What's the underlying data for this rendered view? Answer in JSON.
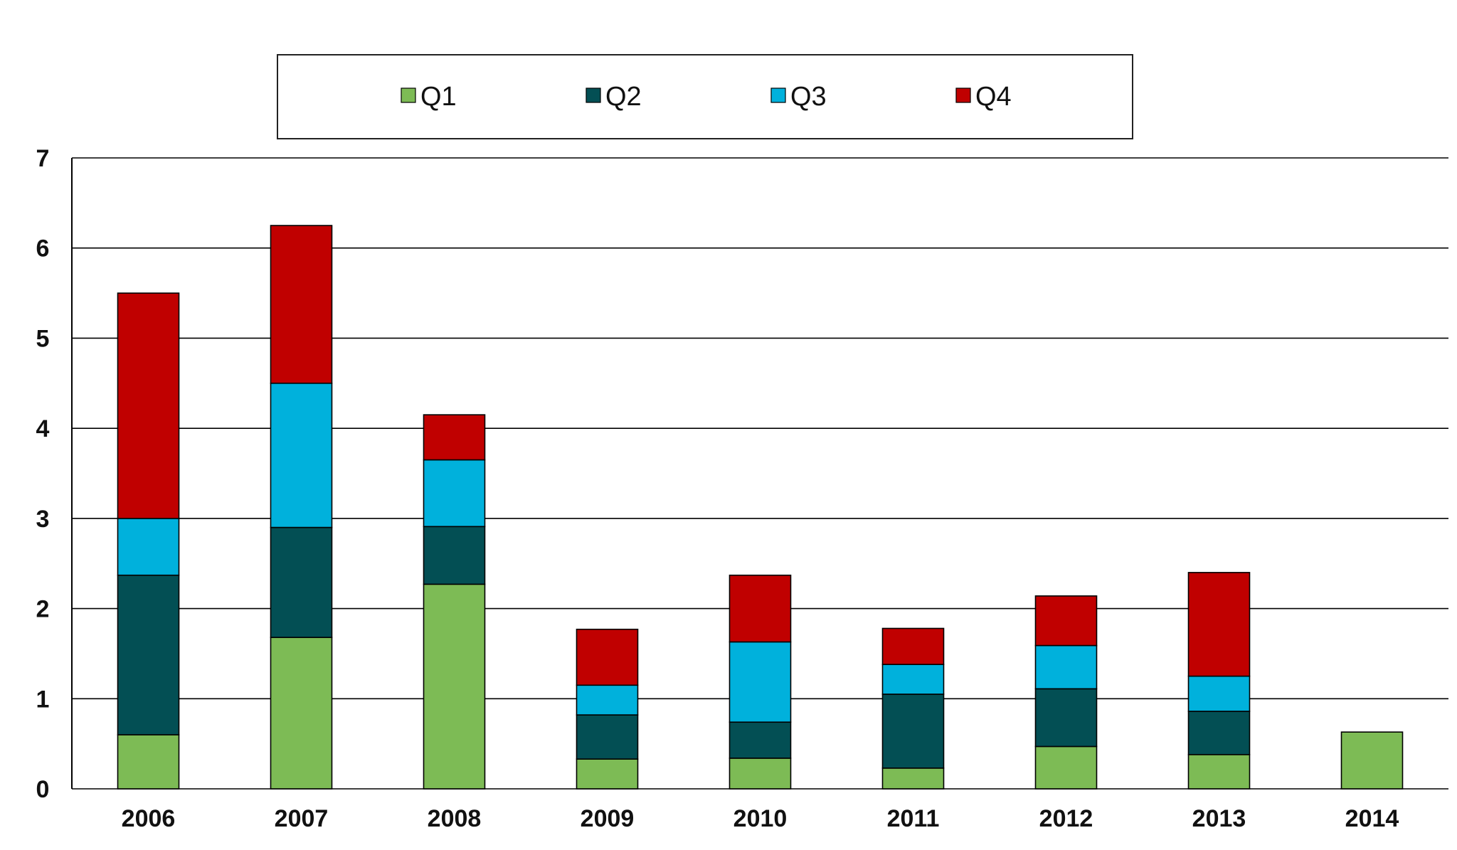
{
  "chart_data": {
    "type": "bar",
    "stacked": true,
    "title": "",
    "xlabel": "",
    "ylabel": "",
    "ylim": [
      0,
      7
    ],
    "yticks": [
      "0",
      "1",
      "2",
      "3",
      "4",
      "5",
      "6",
      "7"
    ],
    "grid": true,
    "legend_position": "top",
    "categories": [
      "2006",
      "2007",
      "2008",
      "2009",
      "2010",
      "2011",
      "2012",
      "2013",
      "2014"
    ],
    "series": [
      {
        "name": "Q1",
        "color": "#7dbb55",
        "values": [
          0.6,
          1.68,
          2.27,
          0.33,
          0.34,
          0.23,
          0.47,
          0.38,
          0.63
        ]
      },
      {
        "name": "Q2",
        "color": "#034f54",
        "values": [
          1.77,
          1.22,
          0.64,
          0.49,
          0.4,
          0.82,
          0.64,
          0.48,
          0
        ]
      },
      {
        "name": "Q3",
        "color": "#00b1dc",
        "values": [
          0.63,
          1.6,
          0.74,
          0.33,
          0.89,
          0.33,
          0.48,
          0.39,
          0
        ]
      },
      {
        "name": "Q4",
        "color": "#c00000",
        "values": [
          2.5,
          1.75,
          0.5,
          0.62,
          0.74,
          0.4,
          0.55,
          1.15,
          0
        ]
      }
    ]
  }
}
